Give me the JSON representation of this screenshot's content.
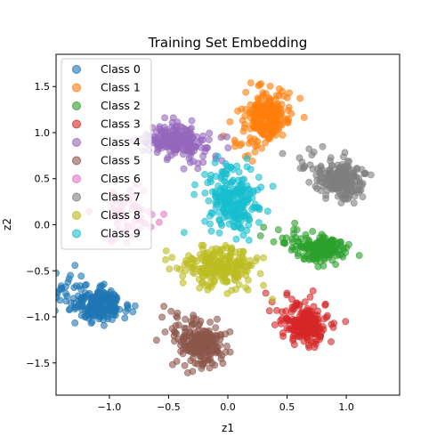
{
  "chart_data": {
    "type": "scatter",
    "title": "Training Set Embedding",
    "xlabel": "z1",
    "ylabel": "z2",
    "xlim": [
      -1.45,
      1.45
    ],
    "ylim": [
      -1.85,
      1.85
    ],
    "x_ticks": [
      -1.0,
      -0.5,
      0.0,
      0.5,
      1.0
    ],
    "x_tick_labels": [
      "−1.0",
      "−0.5",
      "0.0",
      "0.5",
      "1.0"
    ],
    "y_ticks": [
      -1.5,
      -1.0,
      -0.5,
      0.0,
      0.5,
      1.0,
      1.5
    ],
    "y_tick_labels": [
      "−1.5",
      "−1.0",
      "−0.5",
      "0.0",
      "0.5",
      "1.0",
      "1.5"
    ],
    "grid": false,
    "legend_position": "top-left",
    "series": [
      {
        "name": "Class 0",
        "color": "#1f77b4",
        "center": [
          -1.08,
          -0.88
        ],
        "spread": [
          0.1,
          0.09
        ],
        "count": 240,
        "tail": [
          -0.1,
          0.06
        ]
      },
      {
        "name": "Class 1",
        "color": "#ff7f0e",
        "center": [
          0.33,
          1.18
        ],
        "spread": [
          0.09,
          0.12
        ],
        "count": 240,
        "tail": [
          -0.07,
          -0.08
        ]
      },
      {
        "name": "Class 2",
        "color": "#2ca02c",
        "center": [
          0.8,
          -0.26
        ],
        "spread": [
          0.1,
          0.07
        ],
        "count": 190,
        "tail": [
          -0.09,
          0.05
        ]
      },
      {
        "name": "Class 3",
        "color": "#d62728",
        "center": [
          0.68,
          -1.1
        ],
        "spread": [
          0.08,
          0.1
        ],
        "count": 200,
        "tail": [
          -0.06,
          0.07
        ]
      },
      {
        "name": "Class 4",
        "color": "#9467bd",
        "center": [
          -0.47,
          0.93
        ],
        "spread": [
          0.11,
          0.08
        ],
        "count": 220,
        "tail": [
          0.09,
          -0.07
        ]
      },
      {
        "name": "Class 5",
        "color": "#8c564b",
        "center": [
          -0.22,
          -1.32
        ],
        "spread": [
          0.1,
          0.11
        ],
        "count": 230,
        "tail": [
          -0.05,
          0.08
        ]
      },
      {
        "name": "Class 6",
        "color": "#e377c2",
        "center": [
          -0.85,
          0.08
        ],
        "spread": [
          0.1,
          0.13
        ],
        "count": 60,
        "tail": [
          0.08,
          0.02
        ]
      },
      {
        "name": "Class 7",
        "color": "#7f7f7f",
        "center": [
          0.95,
          0.48
        ],
        "spread": [
          0.09,
          0.1
        ],
        "count": 220,
        "tail": [
          -0.08,
          0.06
        ]
      },
      {
        "name": "Class 8",
        "color": "#bcbd22",
        "center": [
          -0.1,
          -0.45
        ],
        "spread": [
          0.14,
          0.1
        ],
        "count": 220,
        "tail": [
          0.08,
          -0.04
        ]
      },
      {
        "name": "Class 9",
        "color": "#17becf",
        "center": [
          0.05,
          0.23
        ],
        "spread": [
          0.11,
          0.16
        ],
        "count": 230,
        "tail": [
          -0.03,
          0.09
        ]
      }
    ]
  }
}
